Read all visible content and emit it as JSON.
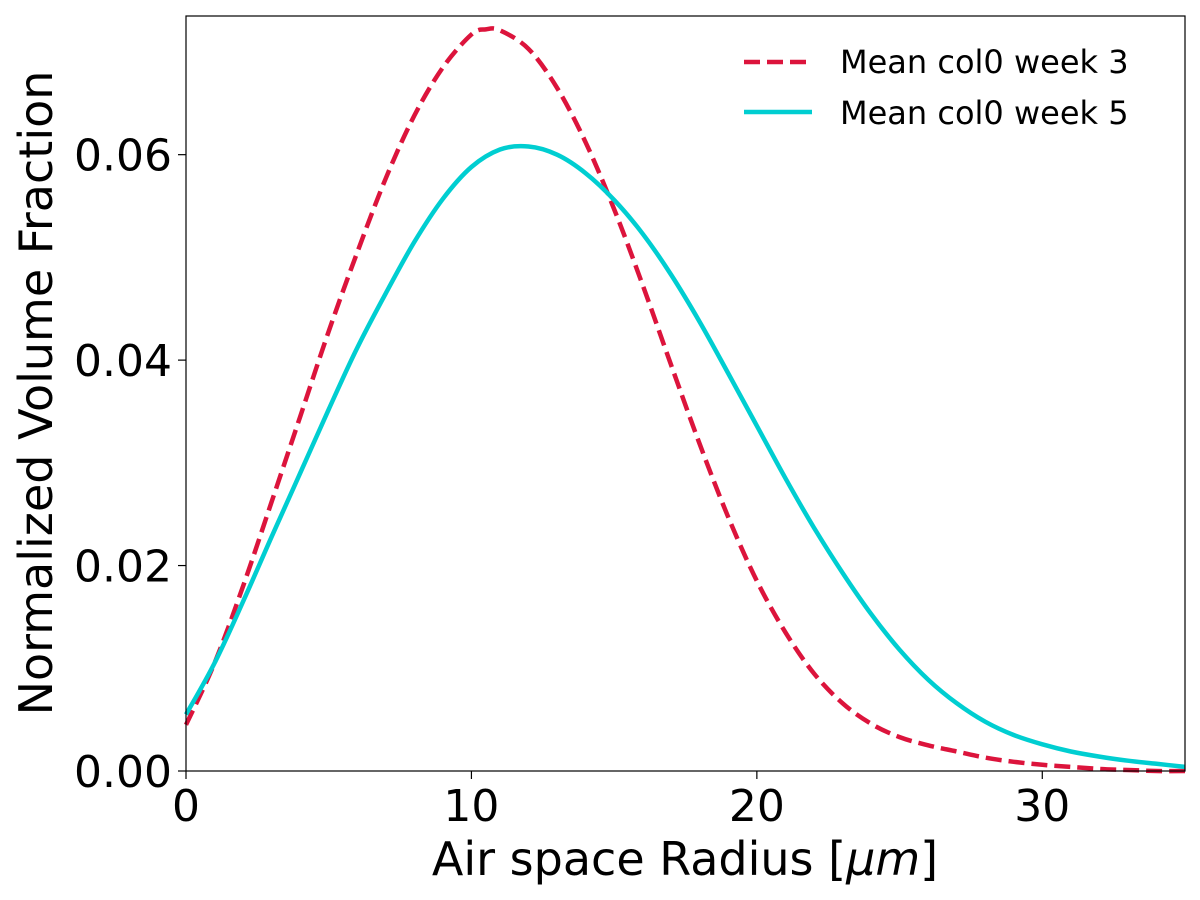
{
  "chart_data": {
    "type": "line",
    "title": "",
    "xlabel_prefix": "Air space Radius [",
    "xlabel_unit": "μm",
    "xlabel_suffix": "]",
    "ylabel": "Normalized Volume Fraction",
    "xlim": [
      0,
      35
    ],
    "ylim": [
      0,
      0.0735
    ],
    "x_ticks": [
      0,
      10,
      20,
      30
    ],
    "x_tick_labels": [
      "0",
      "10",
      "20",
      "30"
    ],
    "y_ticks": [
      0,
      0.02,
      0.04,
      0.06
    ],
    "y_tick_labels": [
      "0.00",
      "0.02",
      "0.04",
      "0.06"
    ],
    "grid": false,
    "legend_position": "top-right",
    "series": [
      {
        "name": "Mean col0 week 3",
        "color": "#dc143c",
        "line_style": "dashed",
        "x": [
          0,
          1,
          2,
          3,
          4,
          5,
          6,
          7,
          8,
          9,
          10,
          10.5,
          11,
          12,
          13,
          14,
          15,
          16,
          17,
          18,
          19,
          20,
          21,
          22,
          23,
          24,
          25,
          26,
          27,
          28,
          29,
          30,
          31,
          32,
          33,
          34,
          35
        ],
        "y": [
          0.0045,
          0.0105,
          0.018,
          0.0262,
          0.0345,
          0.0428,
          0.0505,
          0.0577,
          0.0638,
          0.0685,
          0.0717,
          0.0722,
          0.0721,
          0.0703,
          0.0665,
          0.0612,
          0.0547,
          0.0473,
          0.0395,
          0.0318,
          0.0247,
          0.0185,
          0.0135,
          0.0095,
          0.0066,
          0.0046,
          0.0033,
          0.0025,
          0.0019,
          0.0013,
          0.0009,
          0.0006,
          0.0004,
          0.0002,
          0.0001,
          0.0,
          0.0
        ]
      },
      {
        "name": "Mean col0 week 5",
        "color": "#00ced1",
        "line_style": "solid",
        "x": [
          0,
          1,
          2,
          3,
          4,
          5,
          6,
          7,
          8,
          9,
          10,
          11,
          12,
          13,
          14,
          15,
          16,
          17,
          18,
          19,
          20,
          21,
          22,
          23,
          24,
          25,
          26,
          27,
          28,
          29,
          30,
          31,
          32,
          33,
          34,
          35
        ],
        "y": [
          0.0055,
          0.0105,
          0.0165,
          0.0228,
          0.029,
          0.0352,
          0.0412,
          0.0465,
          0.0515,
          0.0557,
          0.0588,
          0.0605,
          0.0608,
          0.06,
          0.0582,
          0.0556,
          0.0523,
          0.0483,
          0.0437,
          0.0387,
          0.0336,
          0.0285,
          0.0237,
          0.0193,
          0.0153,
          0.0118,
          0.0089,
          0.0066,
          0.0048,
          0.0035,
          0.0026,
          0.0019,
          0.0014,
          0.001,
          0.0007,
          0.0004
        ]
      }
    ]
  }
}
